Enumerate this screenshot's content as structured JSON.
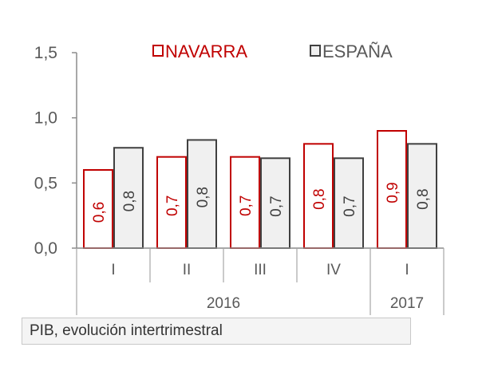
{
  "chart_data": {
    "type": "bar",
    "categories": [
      "I",
      "II",
      "III",
      "IV",
      "I"
    ],
    "years": [
      {
        "label": "2016",
        "span": 4
      },
      {
        "label": "2017",
        "span": 1
      }
    ],
    "series": [
      {
        "name": "NAVARRA",
        "values": [
          0.6,
          0.7,
          0.7,
          0.8,
          0.9
        ],
        "data_labels": [
          "0,6",
          "0,7",
          "0,7",
          "0,8",
          "0,9"
        ],
        "stroke": "#c00000",
        "fill": "#ffffff",
        "label_color": "#c00000"
      },
      {
        "name": "ESPAÑA",
        "values": [
          0.77,
          0.83,
          0.69,
          0.69,
          0.8
        ],
        "data_labels": [
          "0,8",
          "0,8",
          "0,7",
          "0,7",
          "0,8"
        ],
        "stroke": "#404040",
        "fill": "#f0f0f0",
        "label_color": "#404040"
      }
    ],
    "ylim": [
      0,
      1.5
    ],
    "yticks": [
      0,
      0.5,
      1.0,
      1.5
    ],
    "ytick_labels": [
      "0,0",
      "0,5",
      "1,0",
      "1,5"
    ],
    "legend_position": "top",
    "grid": false
  },
  "caption": "PIB, evolución intertrimestral"
}
